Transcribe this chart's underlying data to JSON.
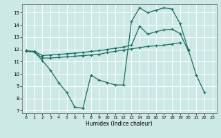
{
  "xlabel": "Humidex (Indice chaleur)",
  "bg_color": "#cce9e5",
  "line_color": "#1a6b60",
  "grid_color": "#ffffff",
  "xlim": [
    -0.5,
    23.5
  ],
  "ylim": [
    6.8,
    15.7
  ],
  "yticks": [
    7,
    8,
    9,
    10,
    11,
    12,
    13,
    14,
    15
  ],
  "xticks": [
    0,
    1,
    2,
    3,
    4,
    5,
    6,
    7,
    8,
    9,
    10,
    11,
    12,
    13,
    14,
    15,
    16,
    17,
    18,
    19,
    20,
    21,
    22,
    23
  ],
  "line1_x": [
    0,
    1,
    2,
    3,
    4,
    5,
    6,
    7,
    8,
    9,
    10,
    11,
    12,
    13,
    14,
    15,
    16,
    17,
    18,
    19,
    20,
    21,
    22
  ],
  "line1_y": [
    11.9,
    11.8,
    11.1,
    10.3,
    9.3,
    8.5,
    7.3,
    7.2,
    9.9,
    9.5,
    9.3,
    9.1,
    9.1,
    14.3,
    15.4,
    15.0,
    15.2,
    15.4,
    15.3,
    14.1,
    12.0,
    9.9,
    8.5
  ],
  "line2_x": [
    0,
    1,
    2,
    3,
    4,
    5,
    6,
    7,
    8,
    9,
    10,
    11,
    12,
    13,
    14,
    15,
    16,
    17,
    18,
    19,
    20
  ],
  "line2_y": [
    11.9,
    11.85,
    11.5,
    11.55,
    11.6,
    11.65,
    11.7,
    11.75,
    11.85,
    11.9,
    12.0,
    12.1,
    12.2,
    12.35,
    13.9,
    13.25,
    13.45,
    13.6,
    13.65,
    13.3,
    11.9
  ],
  "line3_x": [
    0,
    1,
    2,
    3,
    4,
    5,
    6,
    7,
    8,
    9,
    10,
    11,
    12,
    13,
    14,
    15,
    16,
    17,
    18,
    19
  ],
  "line3_y": [
    11.85,
    11.8,
    11.3,
    11.3,
    11.35,
    11.4,
    11.45,
    11.5,
    11.55,
    11.6,
    11.75,
    11.85,
    11.95,
    12.05,
    12.15,
    12.25,
    12.3,
    12.35,
    12.45,
    12.55
  ]
}
